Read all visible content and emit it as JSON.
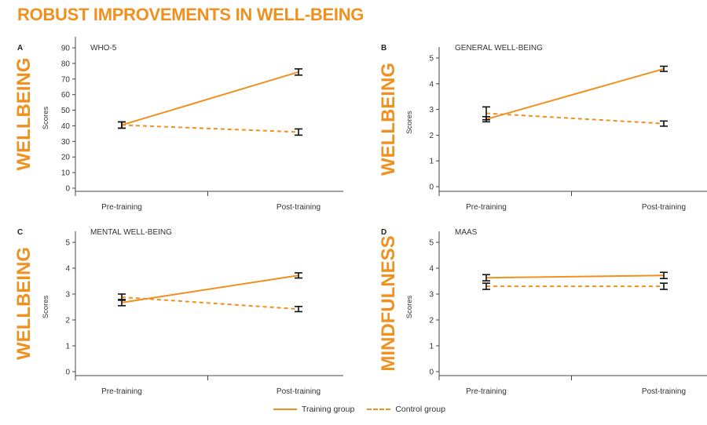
{
  "title": "ROBUST IMPROVEMENTS IN WELL-BEING",
  "colors": {
    "accent": "#f0901e",
    "axis": "#444444",
    "errorbar": "#111111",
    "text": "#333333"
  },
  "legend": {
    "training": "Training group",
    "control": "Control group"
  },
  "chart_data": [
    {
      "type": "line",
      "panel": "A",
      "category_label": "WELLBEING",
      "title": "WHO-5",
      "ylabel": "Scores",
      "xlabel": "",
      "categories": [
        "Pre-training",
        "Post-training"
      ],
      "ylim": [
        0,
        90
      ],
      "yticks": [
        0,
        10,
        20,
        30,
        40,
        50,
        60,
        70,
        80,
        90
      ],
      "series": [
        {
          "name": "Training group",
          "style": "solid",
          "values": [
            40.5,
            74.5
          ],
          "errors": [
            2,
            2
          ]
        },
        {
          "name": "Control group",
          "style": "dashed",
          "values": [
            40.5,
            36
          ],
          "errors": [
            2,
            2
          ]
        }
      ]
    },
    {
      "type": "line",
      "panel": "B",
      "category_label": "WELLBEING",
      "title": "GENERAL WELL-BEING",
      "ylabel": "Scores",
      "xlabel": "",
      "categories": [
        "Pre-training",
        "Post-training"
      ],
      "ylim": [
        0,
        5
      ],
      "yticks": [
        0,
        1,
        2,
        3,
        4,
        5
      ],
      "series": [
        {
          "name": "Training group",
          "style": "solid",
          "values": [
            2.62,
            4.58
          ],
          "errors": [
            0.1,
            0.1
          ]
        },
        {
          "name": "Control group",
          "style": "dashed",
          "values": [
            2.85,
            2.45
          ],
          "errors": [
            0.25,
            0.1
          ]
        }
      ]
    },
    {
      "type": "line",
      "panel": "C",
      "category_label": "WELLBEING",
      "title": "MENTAL WELL-BEING",
      "ylabel": "Scores",
      "xlabel": "",
      "categories": [
        "Pre-training",
        "Post-training"
      ],
      "ylim": [
        0,
        5
      ],
      "yticks": [
        0,
        1,
        2,
        3,
        4,
        5
      ],
      "series": [
        {
          "name": "Training group",
          "style": "solid",
          "values": [
            2.67,
            3.72
          ],
          "errors": [
            0.12,
            0.1
          ]
        },
        {
          "name": "Control group",
          "style": "dashed",
          "values": [
            2.88,
            2.42
          ],
          "errors": [
            0.12,
            0.1
          ]
        }
      ]
    },
    {
      "type": "line",
      "panel": "D",
      "category_label": "MINDFULNESS",
      "title": "MAAS",
      "ylabel": "Scores",
      "xlabel": "",
      "categories": [
        "Pre-training",
        "Post-training"
      ],
      "ylim": [
        0,
        5
      ],
      "yticks": [
        0,
        1,
        2,
        3,
        4,
        5
      ],
      "series": [
        {
          "name": "Training group",
          "style": "solid",
          "values": [
            3.63,
            3.72
          ],
          "errors": [
            0.12,
            0.12
          ]
        },
        {
          "name": "Control group",
          "style": "dashed",
          "values": [
            3.3,
            3.3
          ],
          "errors": [
            0.12,
            0.12
          ]
        }
      ]
    }
  ]
}
